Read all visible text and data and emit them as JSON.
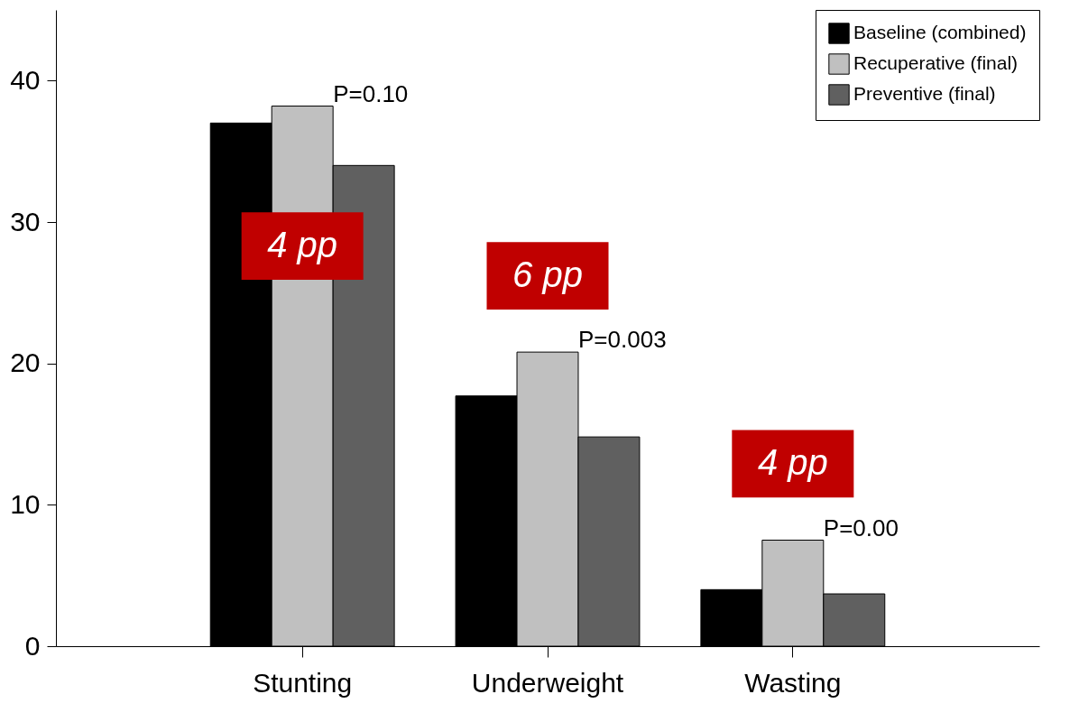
{
  "chart_data": {
    "type": "bar",
    "categories": [
      "Stunting",
      "Underweight",
      "Wasting"
    ],
    "series": [
      {
        "name": "Baseline (combined)",
        "color": "#000000",
        "values": [
          37.0,
          17.7,
          4.0
        ]
      },
      {
        "name": "Recuperative (final)",
        "color": "#c0c0c0",
        "values": [
          38.2,
          20.8,
          7.5
        ]
      },
      {
        "name": "Preventive (final)",
        "color": "#606060",
        "values": [
          34.0,
          14.8,
          3.7
        ]
      }
    ],
    "ylim": [
      0,
      45
    ],
    "yticks": [
      0,
      10,
      20,
      30,
      40
    ],
    "legend": "top right",
    "annotations": [
      "P=0.10",
      "4 pp",
      "P=0.003",
      "6 pp",
      "P=0.00",
      "4 pp"
    ]
  }
}
